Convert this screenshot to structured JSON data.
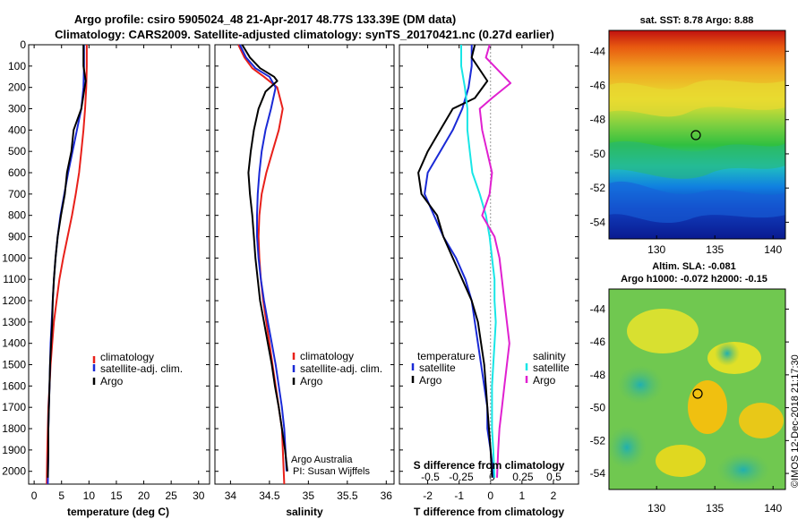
{
  "header": {
    "title_line1": "Argo profile: csiro 5905024_48 21-Apr-2017 48.77S 133.39E (DM data)",
    "title_line2": "Climatology: CARS2009. Satellite-adjusted climatology: synTS_20170421.nc (0.27d earlier)"
  },
  "colors": {
    "climatology": "#e8201a",
    "satellite": "#1a2ad6",
    "argo": "#000000",
    "satellite_salinity": "#18e6e6",
    "argo_salinity": "#e020d0"
  },
  "chart_data": [
    {
      "type": "line",
      "name": "temperature-profile",
      "xlabel": "temperature (deg C)",
      "ylabel": "",
      "xlim": [
        -1,
        32
      ],
      "ylim": [
        2060,
        0
      ],
      "xticks": [
        "0",
        "5",
        "10",
        "15",
        "20",
        "25",
        "30"
      ],
      "xtick_values": [
        0,
        5,
        10,
        15,
        20,
        25,
        30
      ],
      "yticks": [
        "0",
        "100",
        "200",
        "300",
        "400",
        "500",
        "600",
        "700",
        "800",
        "900",
        "1000",
        "1100",
        "1200",
        "1300",
        "1400",
        "1500",
        "1600",
        "1700",
        "1800",
        "1900",
        "2000"
      ],
      "legend": [
        "climatology",
        "satellite-adj. clim.",
        "Argo"
      ],
      "series": [
        {
          "name": "climatology",
          "color": "#e8201a",
          "x": [
            9.6,
            9.6,
            9.5,
            9.3,
            9.0,
            8.6,
            8.2,
            7.6,
            6.9,
            6.1,
            5.3,
            4.6,
            4.1,
            3.6,
            3.3,
            3.0,
            2.8,
            2.6,
            2.5,
            2.4,
            2.3
          ],
          "y": [
            0,
            100,
            200,
            300,
            400,
            500,
            600,
            700,
            800,
            900,
            1000,
            1100,
            1200,
            1300,
            1400,
            1500,
            1600,
            1700,
            1800,
            1900,
            2060
          ]
        },
        {
          "name": "satellite-adj. clim.",
          "color": "#1a2ad6",
          "x": [
            9.1,
            9.1,
            9.0,
            8.6,
            7.8,
            7.0,
            6.2,
            5.5,
            4.8,
            4.3,
            3.9,
            3.6,
            3.4,
            3.2,
            3.0,
            2.9,
            2.8,
            2.7,
            2.6,
            2.6,
            2.5
          ],
          "y": [
            0,
            100,
            200,
            300,
            400,
            500,
            600,
            700,
            800,
            900,
            1000,
            1100,
            1200,
            1300,
            1400,
            1500,
            1600,
            1700,
            1800,
            1900,
            2060
          ]
        },
        {
          "name": "Argo",
          "color": "#000000",
          "x": [
            9.0,
            9.0,
            9.4,
            8.6,
            7.2,
            6.8,
            6.0,
            5.6,
            4.9,
            4.3,
            3.9,
            3.6,
            3.4,
            3.3,
            3.1,
            2.9,
            2.8,
            2.7,
            2.6,
            2.6,
            2.5
          ],
          "y": [
            0,
            100,
            170,
            300,
            400,
            500,
            600,
            700,
            800,
            900,
            1000,
            1100,
            1200,
            1300,
            1400,
            1500,
            1600,
            1700,
            1800,
            1900,
            2030
          ]
        }
      ]
    },
    {
      "type": "line",
      "name": "salinity-profile",
      "xlabel": "salinity",
      "ylabel": "",
      "xlim": [
        33.8,
        36.1
      ],
      "ylim": [
        2060,
        0
      ],
      "xticks": [
        "34",
        "34.5",
        "35",
        "35.5",
        "36"
      ],
      "xtick_values": [
        34,
        34.5,
        35,
        35.5,
        36
      ],
      "legend": [
        "climatology",
        "satellite-adj. clim.",
        "Argo"
      ],
      "series": [
        {
          "name": "climatology",
          "color": "#e8201a",
          "x": [
            34.1,
            34.18,
            34.28,
            34.43,
            34.6,
            34.67,
            34.62,
            34.54,
            34.46,
            34.4,
            34.37,
            34.36,
            34.37,
            34.39,
            34.42,
            34.46,
            34.5,
            34.54,
            34.58,
            34.62,
            34.66,
            34.69
          ],
          "y": [
            0,
            60,
            110,
            150,
            200,
            300,
            400,
            500,
            600,
            700,
            800,
            900,
            1000,
            1100,
            1200,
            1300,
            1400,
            1500,
            1600,
            1700,
            1800,
            2060
          ]
        },
        {
          "name": "satellite-adj. clim.",
          "color": "#1a2ad6",
          "x": [
            34.12,
            34.2,
            34.32,
            34.5,
            34.58,
            34.52,
            34.45,
            34.4,
            34.37,
            34.35,
            34.34,
            34.34,
            34.36,
            34.39,
            34.43,
            34.48,
            34.53,
            34.58,
            34.62,
            34.66,
            34.69,
            34.72
          ],
          "y": [
            0,
            60,
            110,
            150,
            200,
            300,
            400,
            500,
            600,
            700,
            800,
            900,
            1000,
            1100,
            1200,
            1300,
            1400,
            1500,
            1600,
            1700,
            1800,
            2000
          ]
        },
        {
          "name": "Argo",
          "color": "#000000",
          "x": [
            34.15,
            34.25,
            34.38,
            34.56,
            34.6,
            34.45,
            34.36,
            34.3,
            34.26,
            34.23,
            34.25,
            34.28,
            34.3,
            34.32,
            34.35,
            34.38,
            34.43,
            34.48,
            34.53,
            34.57,
            34.62,
            34.66,
            34.7,
            34.73
          ],
          "y": [
            0,
            60,
            110,
            150,
            170,
            220,
            300,
            400,
            500,
            600,
            700,
            800,
            900,
            1000,
            1100,
            1200,
            1300,
            1400,
            1500,
            1600,
            1700,
            1800,
            1900,
            2000
          ]
        }
      ]
    },
    {
      "type": "line",
      "name": "difference-profile",
      "xlabel": "T difference from climatology",
      "xlabel2": "S difference from climatology",
      "xlim": [
        -2.9,
        2.8
      ],
      "ylim": [
        2060,
        0
      ],
      "xticks": [
        "-2",
        "-1",
        "0",
        "1",
        "2"
      ],
      "xtick_values": [
        -2,
        -1,
        0,
        1,
        2
      ],
      "xticks_s": [
        "-0.5",
        "-0.25",
        "0",
        "0.25",
        "0.5"
      ],
      "xtick_s_values": [
        -0.5,
        -0.25,
        0,
        0.25,
        0.5
      ],
      "legend_left_title": "temperature",
      "legend_right_title": "salinity",
      "legend_left": [
        "satellite",
        "Argo"
      ],
      "legend_right": [
        "satellite",
        "Argo"
      ],
      "series": [
        {
          "name": "temperature satellite",
          "color": "#1a2ad6",
          "x": [
            -0.6,
            -0.6,
            -0.6,
            -0.7,
            -0.9,
            -1.2,
            -1.6,
            -2.0,
            -2.1,
            -1.8,
            -1.5,
            -1.1,
            -0.8,
            -0.6,
            -0.5,
            -0.4,
            -0.3,
            -0.2,
            -0.1,
            -0.1,
            0,
            0.1
          ],
          "y": [
            0,
            60,
            100,
            200,
            300,
            400,
            500,
            600,
            700,
            800,
            900,
            1000,
            1100,
            1200,
            1300,
            1400,
            1500,
            1600,
            1700,
            1800,
            1900,
            2030
          ]
        },
        {
          "name": "temperature Argo",
          "color": "#000000",
          "x": [
            -0.5,
            -0.6,
            -0.1,
            -0.5,
            -1.2,
            -1.6,
            -2.0,
            -2.3,
            -2.2,
            -1.7,
            -1.5,
            -1.2,
            -0.9,
            -0.6,
            -0.4,
            -0.3,
            -0.2,
            -0.15,
            -0.1,
            -0.05,
            0,
            0.05
          ],
          "y": [
            0,
            60,
            170,
            250,
            300,
            400,
            500,
            600,
            700,
            800,
            900,
            1000,
            1100,
            1200,
            1300,
            1400,
            1500,
            1600,
            1700,
            1800,
            1900,
            2030
          ]
        },
        {
          "name": "salinity satellite",
          "color": "#18e6e6",
          "x": [
            -0.25,
            -0.25,
            -0.25,
            -0.22,
            -0.2,
            -0.2,
            -0.18,
            -0.16,
            -0.1,
            -0.05,
            -0.02,
            0.0,
            0.02,
            0.02,
            0.03,
            0.02,
            0.01,
            0.0,
            0.0,
            0.0,
            0.01,
            0.02
          ],
          "y": [
            0,
            60,
            100,
            200,
            300,
            400,
            500,
            600,
            700,
            800,
            900,
            1000,
            1100,
            1200,
            1300,
            1400,
            1500,
            1600,
            1700,
            1800,
            1900,
            2030
          ]
        },
        {
          "name": "salinity Argo",
          "color": "#e020d0",
          "x": [
            -0.02,
            -0.05,
            0.15,
            0.0,
            -0.1,
            -0.08,
            -0.04,
            0.0,
            -0.02,
            -0.08,
            0.02,
            0.06,
            0.08,
            0.1,
            0.12,
            0.14,
            0.12,
            0.1,
            0.08,
            0.06,
            0.05,
            0.04
          ],
          "y": [
            0,
            60,
            180,
            250,
            300,
            400,
            500,
            600,
            700,
            800,
            900,
            1000,
            1100,
            1200,
            1300,
            1400,
            1500,
            1600,
            1700,
            1800,
            1900,
            2030
          ]
        }
      ]
    }
  ],
  "maps": {
    "top": {
      "title": "sat. SST: 8.78 Argo: 8.88",
      "xticks": [
        "130",
        "135",
        "140"
      ],
      "yticks": [
        "-44",
        "-46",
        "-48",
        "-50",
        "-52",
        "-54"
      ]
    },
    "bottom": {
      "title_line1": "Altim. SLA: -0.081",
      "title_line2": "Argo h1000: -0.072 h2000: -0.15",
      "xticks": [
        "130",
        "135",
        "140"
      ],
      "yticks": [
        "-44",
        "-46",
        "-48",
        "-50",
        "-52",
        "-54"
      ]
    }
  },
  "credits": {
    "line1": "Argo Australia",
    "line2": "PI: Susan Wijffels",
    "stamp": "©IMOS 12-Dec-2018 21:17:30"
  }
}
